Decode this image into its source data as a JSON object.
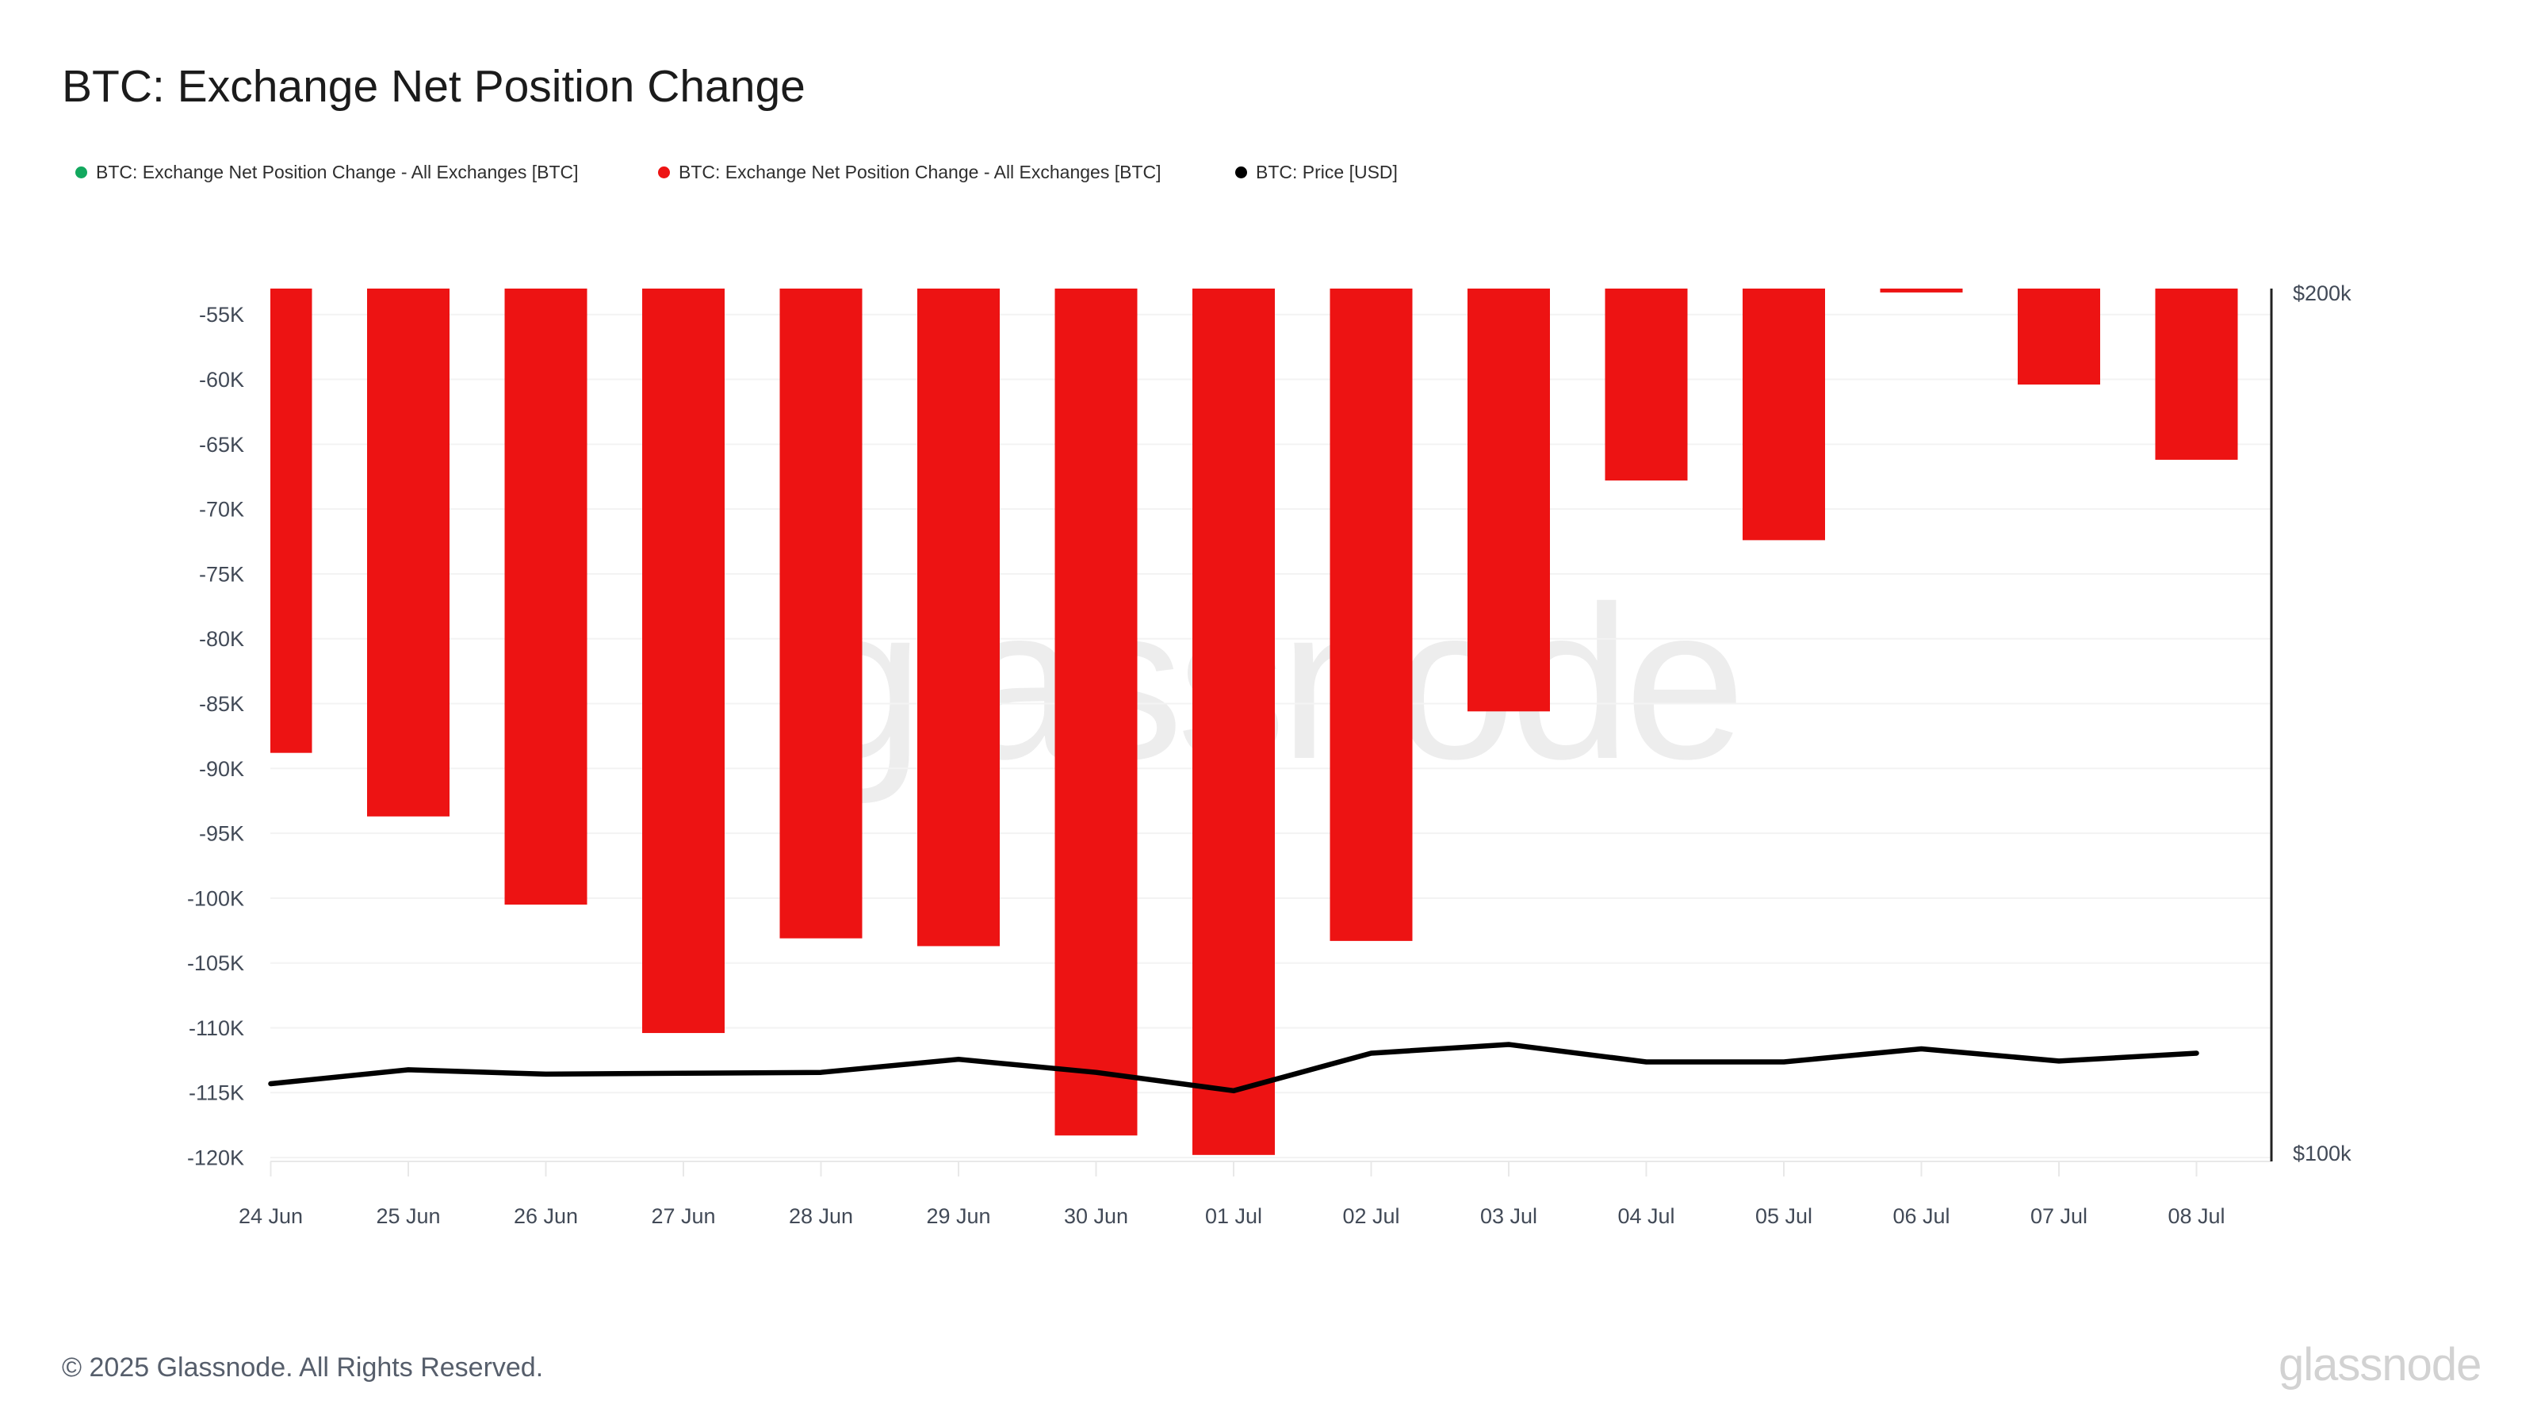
{
  "header": {
    "title": "BTC: Exchange Net Position Change"
  },
  "legend": [
    {
      "label": "BTC: Exchange Net Position Change - All Exchanges [BTC]",
      "color": "#12a85e",
      "icon": "dot"
    },
    {
      "label": "BTC: Exchange Net Position Change - All Exchanges [BTC]",
      "color": "#ed1313",
      "icon": "dot"
    },
    {
      "label": "BTC: Price [USD]",
      "color": "#000000",
      "icon": "dot"
    }
  ],
  "chart_data": {
    "type": "bar",
    "title": "BTC: Exchange Net Position Change",
    "categories": [
      "24 Jun",
      "25 Jun",
      "26 Jun",
      "27 Jun",
      "28 Jun",
      "29 Jun",
      "30 Jun",
      "01 Jul",
      "02 Jul",
      "03 Jul",
      "04 Jul",
      "05 Jul",
      "06 Jul",
      "07 Jul",
      "08 Jul"
    ],
    "series": [
      {
        "name": "BTC: Exchange Net Position Change - All Exchanges [BTC]",
        "type": "bar",
        "axis": "left",
        "color": "#ed1313",
        "values": [
          -88800,
          -93700,
          -100500,
          -110400,
          -103100,
          -103700,
          -118300,
          -119800,
          -103300,
          -85600,
          -67800,
          -72400,
          -53300,
          -60400,
          -66200
        ]
      },
      {
        "name": "BTC: Price [USD]",
        "type": "line",
        "axis": "right",
        "color": "#000000",
        "values": [
          108900,
          110500,
          110000,
          110100,
          110200,
          111700,
          110200,
          108100,
          112400,
          113400,
          111400,
          111400,
          112900,
          111500,
          112400
        ]
      }
    ],
    "left_axis": {
      "tick_labels": [
        "-55K",
        "-60K",
        "-65K",
        "-70K",
        "-75K",
        "-80K",
        "-85K",
        "-90K",
        "-95K",
        "-100K",
        "-105K",
        "-110K",
        "-115K",
        "-120K"
      ],
      "tick_values": [
        -55000,
        -60000,
        -65000,
        -70000,
        -75000,
        -80000,
        -85000,
        -90000,
        -95000,
        -100000,
        -105000,
        -110000,
        -115000,
        -120000
      ],
      "range_top": -53000,
      "range_bottom": -120300
    },
    "right_axis": {
      "tick_labels": [
        "$200k",
        "$100k"
      ],
      "range_top": 200000,
      "range_bottom": 100000
    },
    "grid": true,
    "legend_position": "top"
  },
  "watermark": {
    "center_text": "glassnode",
    "logo_text": "glassnode"
  },
  "footer": {
    "copyright": "© 2025 Glassnode. All Rights Reserved."
  },
  "colors": {
    "bar_red": "#ed1313",
    "legend_green": "#12a85e",
    "price_black": "#000000",
    "gridline": "#f3f3f3",
    "axis_text": "#424a57",
    "right_axis_line": "#222222",
    "bottom_axis_line": "#e8e8e8",
    "watermark_gray": "#ededed"
  }
}
